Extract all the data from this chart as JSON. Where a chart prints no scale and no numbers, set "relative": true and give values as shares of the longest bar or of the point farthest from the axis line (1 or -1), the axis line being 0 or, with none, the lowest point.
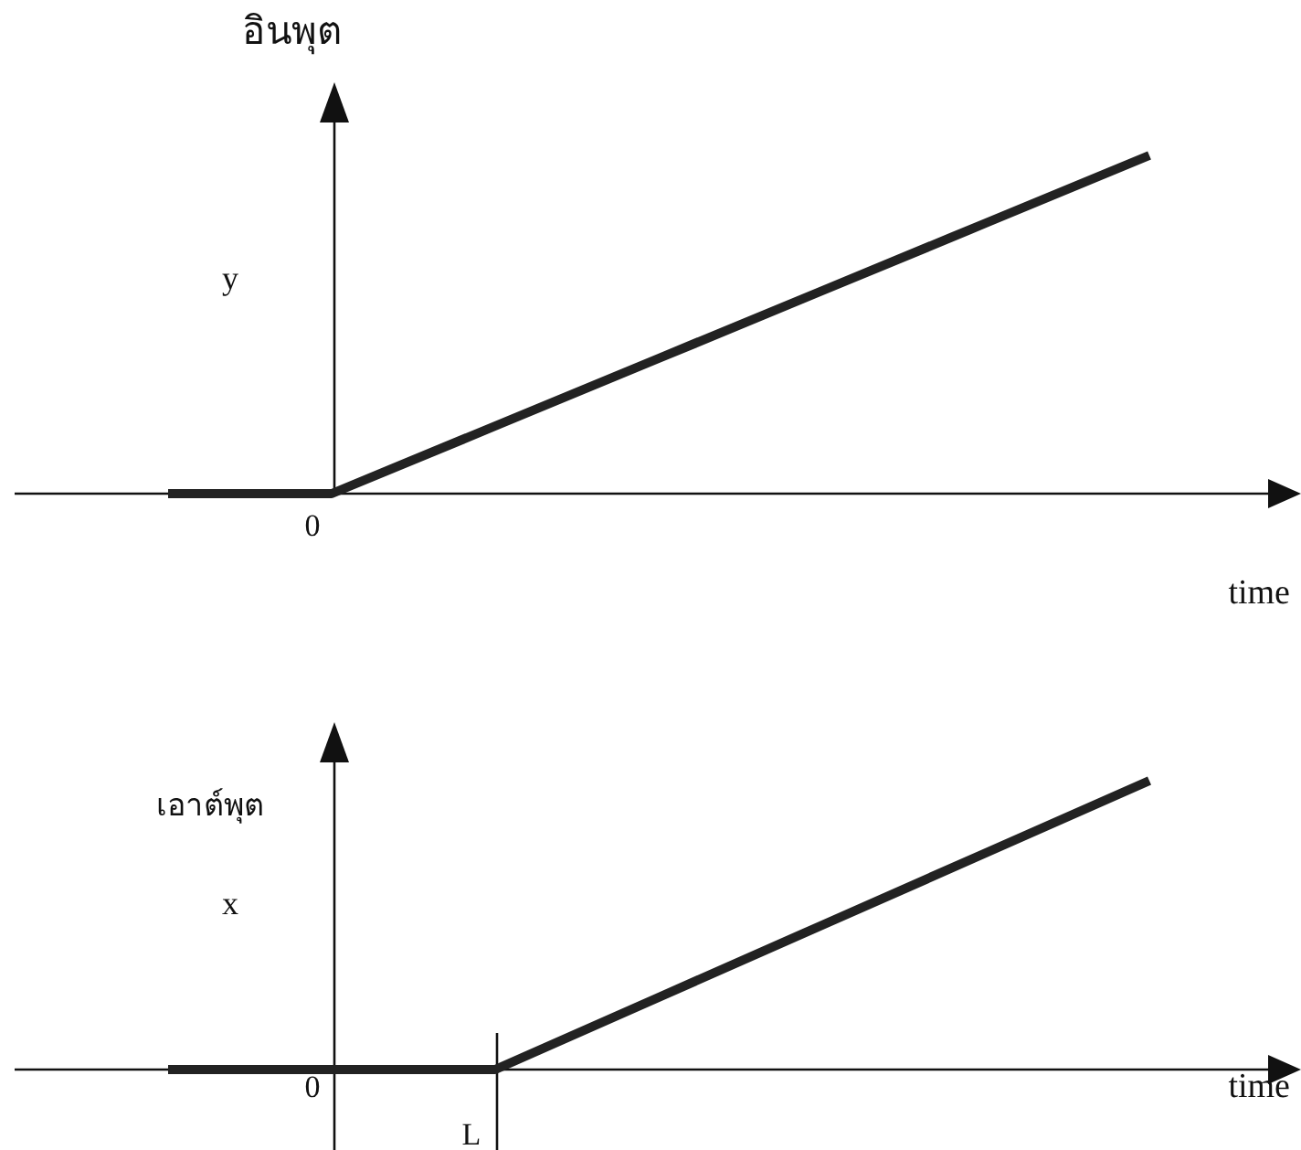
{
  "chart_data": [
    {
      "type": "line",
      "title": "อินพุต",
      "ylabel": "y",
      "xlabel": "time",
      "relative": true,
      "categories": [
        null,
        null,
        null,
        null,
        null,
        null,
        null
      ],
      "marker": "none",
      "line_style": "solid",
      "annotations": [
        "0"
      ],
      "series": [
        {
          "color": "#222222",
          "values": [
            0,
            0,
            0.2,
            0.4,
            0.6,
            0.8,
            1
          ]
        }
      ]
    },
    {
      "type": "line",
      "title": "เอาต์พุต",
      "ylabel": "x",
      "xlabel": "time",
      "relative": true,
      "categories": [
        null,
        null,
        null,
        null,
        null,
        null,
        null
      ],
      "marker": "none",
      "line_style": "solid",
      "annotations": [
        "0",
        "L"
      ],
      "series": [
        {
          "color": "#222222",
          "values": [
            0,
            0,
            0,
            0.25,
            0.5,
            0.75,
            1
          ]
        }
      ]
    }
  ]
}
